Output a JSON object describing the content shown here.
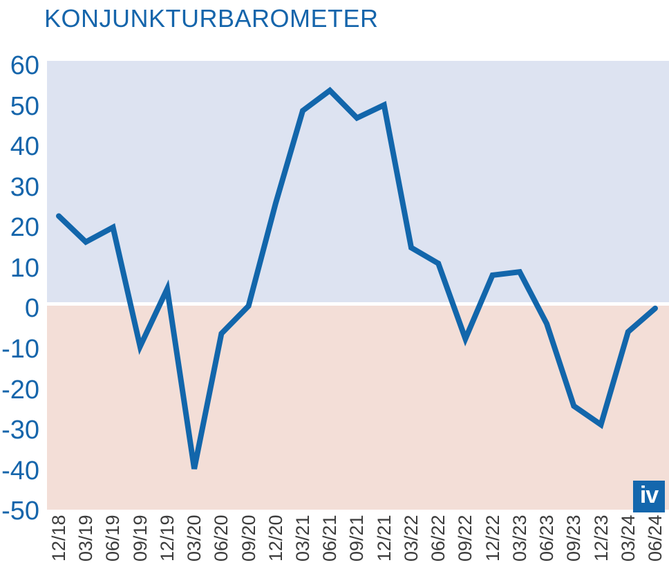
{
  "title": "KONJUNKTURBAROMETER",
  "logo": {
    "text": "iv"
  },
  "colors": {
    "title_text": "#1565ab",
    "axis_y_text": "#1565ab",
    "axis_x_text": "#3d3d3d",
    "line": "#1266ab",
    "background_positive": "#dde3f1",
    "background_negative": "#f3ded7",
    "zero_line": "#ffffff",
    "logo_background": "#1467ad",
    "logo_text": "#ffffff",
    "page_background": "#ffffff"
  },
  "chart_data": {
    "type": "line",
    "title": "KONJUNKTURBAROMETER",
    "series_name": "Konjunkturbarometer",
    "categories": [
      "12/18",
      "03/19",
      "06/19",
      "09/19",
      "12/19",
      "03/20",
      "06/20",
      "09/20",
      "12/20",
      "03/21",
      "06/21",
      "09/21",
      "12/21",
      "03/22",
      "06/22",
      "09/22",
      "12/22",
      "03/23",
      "06/23",
      "09/23",
      "12/23",
      "03/24",
      "06/24"
    ],
    "values": [
      21.7,
      15.3,
      18.9,
      -10.5,
      3.7,
      -40.7,
      -7.3,
      -0.5,
      24.8,
      47.7,
      52.7,
      45.9,
      49.1,
      13.9,
      10.0,
      -8.6,
      7.1,
      7.9,
      -4.9,
      -25.2,
      -29.8,
      -6.9,
      -1.1
    ],
    "xlabel": "",
    "ylabel": "",
    "ylim": [
      -50,
      60
    ],
    "yticks": [
      60,
      50,
      40,
      30,
      20,
      10,
      0,
      -10,
      -20,
      -30,
      -40,
      -50
    ],
    "grid": false,
    "legend_position": "none",
    "positive_region_shaded": true,
    "negative_region_shaded": true
  }
}
